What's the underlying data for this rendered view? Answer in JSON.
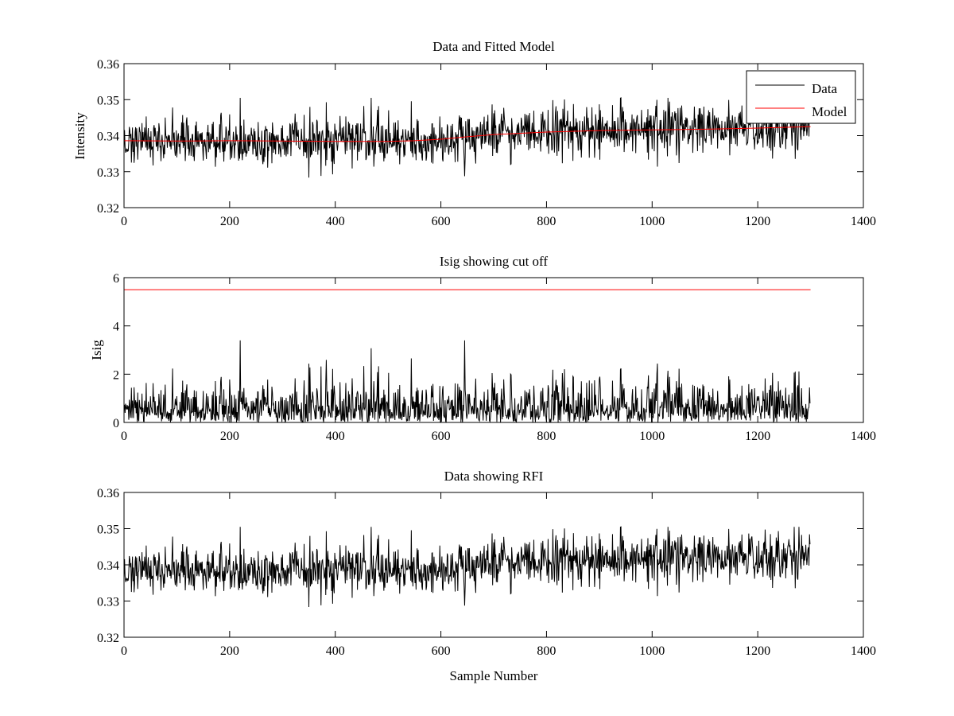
{
  "figure": {
    "background": "#ffffff"
  },
  "chart_data": [
    {
      "type": "line",
      "title": "Data and Fitted Model",
      "xlabel": "",
      "ylabel": "Intensity",
      "xlim": [
        0,
        1400
      ],
      "ylim": [
        0.32,
        0.36
      ],
      "xticks": [
        0,
        200,
        400,
        600,
        800,
        1000,
        1200,
        1400
      ],
      "yticks": [
        0.32,
        0.33,
        0.34,
        0.35,
        0.36
      ],
      "xtick_labels": [
        "0",
        "200",
        "400",
        "600",
        "800",
        "1000",
        "1200",
        "1400"
      ],
      "ytick_labels": [
        "0.32",
        "0.33",
        "0.34",
        "0.35",
        "0.36"
      ],
      "grid": false,
      "legend": {
        "placement": "top-right",
        "entries": [
          "Data",
          "Model"
        ]
      },
      "series": [
        {
          "name": "Data",
          "color": "#000000",
          "kind": "noisy",
          "n_points": 1300,
          "mean_trend": {
            "x": [
              0,
              300,
              550,
              700,
              900,
              1100,
              1300
            ],
            "y": [
              0.3385,
              0.3385,
              0.3385,
              0.3402,
              0.3412,
              0.3418,
              0.3424
            ]
          },
          "noise_amplitude": 0.0035,
          "min": 0.3275,
          "max": 0.3505
        },
        {
          "name": "Model",
          "color": "#ff0000",
          "kind": "line",
          "x": [
            0,
            100,
            200,
            300,
            400,
            500,
            550,
            600,
            650,
            700,
            800,
            900,
            1000,
            1100,
            1200,
            1300
          ],
          "y": [
            0.3386,
            0.3385,
            0.3386,
            0.3385,
            0.3384,
            0.3384,
            0.3386,
            0.339,
            0.3397,
            0.3403,
            0.341,
            0.3414,
            0.3416,
            0.3418,
            0.3421,
            0.3425
          ]
        }
      ]
    },
    {
      "type": "line",
      "title": "Isig showing cut off",
      "xlabel": "",
      "ylabel": "Isig",
      "xlim": [
        0,
        1400
      ],
      "ylim": [
        0,
        6
      ],
      "xticks": [
        0,
        200,
        400,
        600,
        800,
        1000,
        1200,
        1400
      ],
      "yticks": [
        0,
        2,
        4,
        6
      ],
      "xtick_labels": [
        "0",
        "200",
        "400",
        "600",
        "800",
        "1000",
        "1200",
        "1400"
      ],
      "ytick_labels": [
        "0",
        "2",
        "4",
        "6"
      ],
      "grid": false,
      "series": [
        {
          "color": "#000000",
          "kind": "abs-noise",
          "n_points": 1300,
          "mean_level": 0.8,
          "max": 3.4,
          "peak_x": 645
        },
        {
          "color": "#ff0000",
          "kind": "line",
          "x": [
            0,
            1300
          ],
          "y": [
            5.5,
            5.5
          ]
        }
      ]
    },
    {
      "type": "line",
      "title": "Data showing RFI",
      "xlabel": "Sample Number",
      "ylabel": "",
      "xlim": [
        0,
        1400
      ],
      "ylim": [
        0.32,
        0.36
      ],
      "xticks": [
        0,
        200,
        400,
        600,
        800,
        1000,
        1200,
        1400
      ],
      "yticks": [
        0.32,
        0.33,
        0.34,
        0.35,
        0.36
      ],
      "xtick_labels": [
        "0",
        "200",
        "400",
        "600",
        "800",
        "1000",
        "1200",
        "1400"
      ],
      "ytick_labels": [
        "0.32",
        "0.33",
        "0.34",
        "0.35",
        "0.36"
      ],
      "grid": false,
      "series": [
        {
          "color": "#000000",
          "kind": "noisy",
          "n_points": 1300,
          "mean_trend": {
            "x": [
              0,
              300,
              550,
              700,
              900,
              1100,
              1300
            ],
            "y": [
              0.3385,
              0.3385,
              0.3385,
              0.3402,
              0.3412,
              0.3418,
              0.3424
            ]
          },
          "noise_amplitude": 0.0035,
          "min": 0.3275,
          "max": 0.3505
        }
      ]
    }
  ]
}
